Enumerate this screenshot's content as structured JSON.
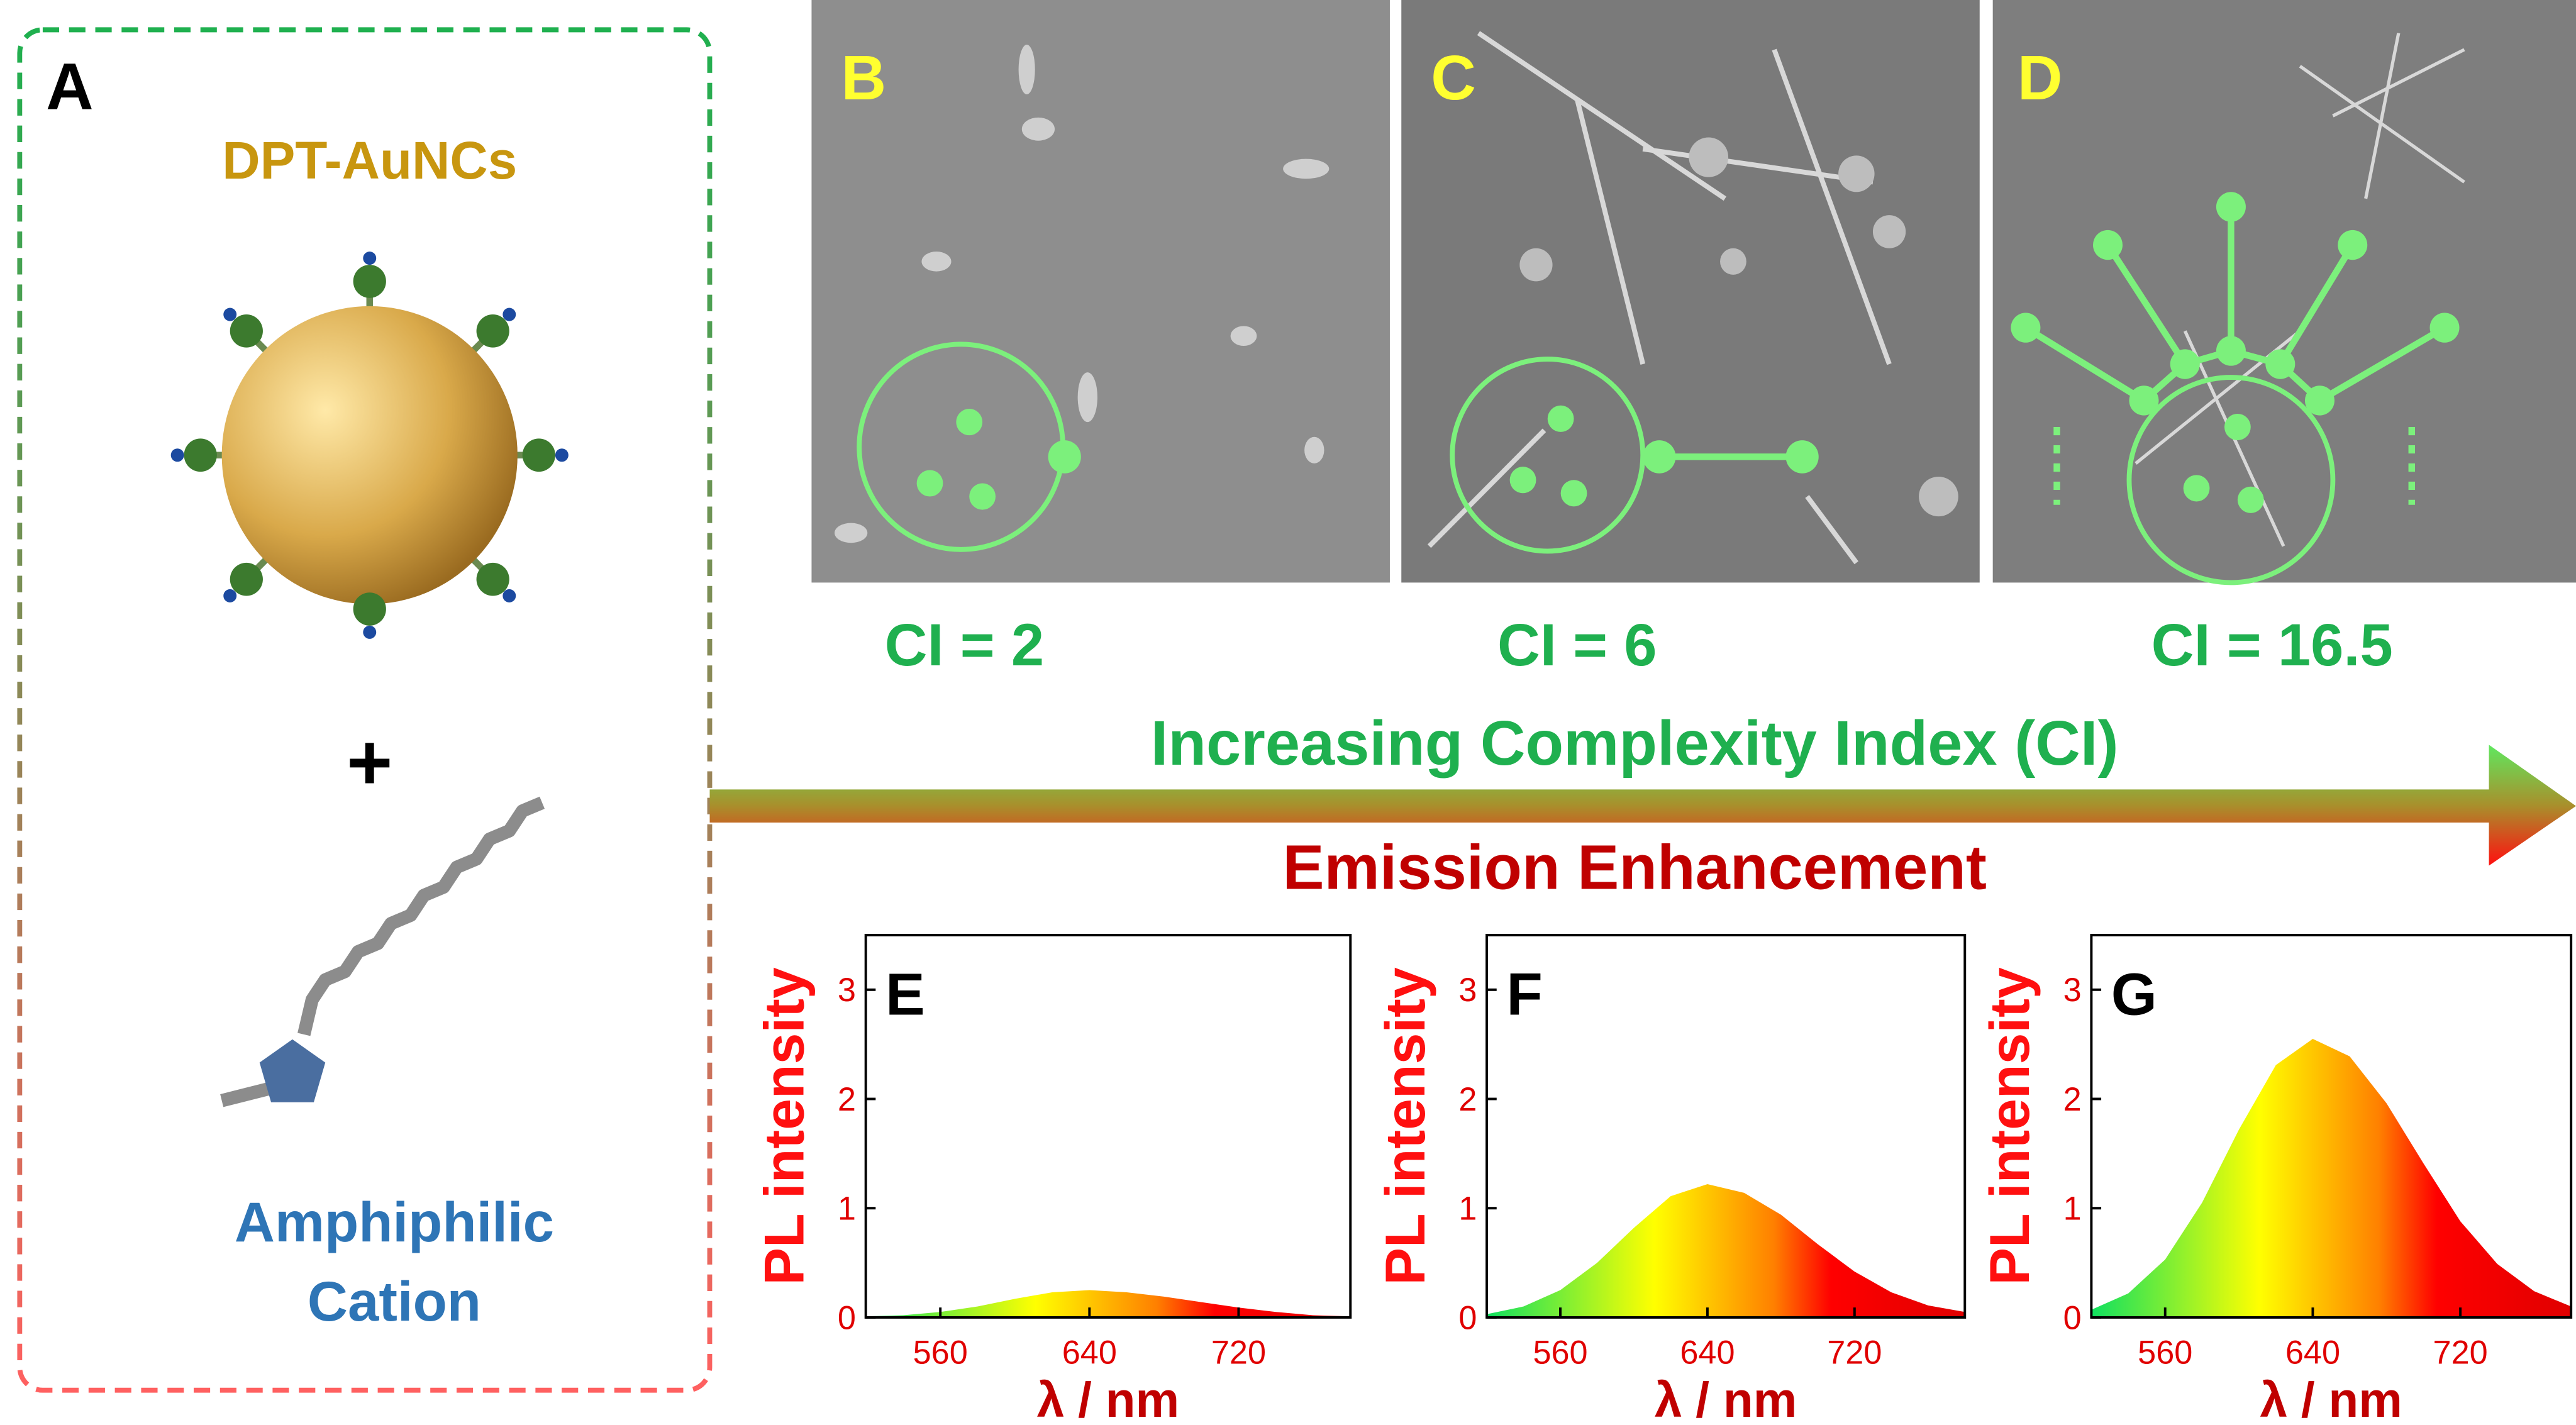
{
  "labels": {
    "panel_a": "A",
    "dpt": "DPT-AuNCs",
    "plus": "+",
    "amphiphilic": "Amphiphilic",
    "cation": "Cation",
    "panel_b": "B",
    "panel_c": "C",
    "panel_d": "D",
    "ci_b": "CI = 2",
    "ci_c": "CI = 6",
    "ci_d": "CI = 16.5",
    "arrow_top": "Increasing Complexity Index (CI)",
    "arrow_bottom": "Emission Enhancement"
  },
  "chart_data": [
    {
      "type": "area",
      "title": "E",
      "xlabel": "λ / nm",
      "ylabel": "PL intensity",
      "x": [
        520,
        540,
        560,
        580,
        600,
        620,
        640,
        660,
        680,
        700,
        720,
        740,
        760,
        780
      ],
      "values": [
        0.01,
        0.02,
        0.05,
        0.1,
        0.17,
        0.23,
        0.25,
        0.23,
        0.19,
        0.14,
        0.09,
        0.05,
        0.02,
        0.01
      ],
      "xlim": [
        520,
        780
      ],
      "ylim": [
        0,
        3.5
      ],
      "xticks": [
        560,
        640,
        720
      ],
      "yticks": [
        0,
        1,
        2,
        3
      ]
    },
    {
      "type": "area",
      "title": "F",
      "xlabel": "λ / nm",
      "ylabel": "PL intensity",
      "x": [
        520,
        540,
        560,
        580,
        600,
        620,
        640,
        660,
        680,
        700,
        720,
        740,
        760,
        780
      ],
      "values": [
        0.03,
        0.1,
        0.25,
        0.5,
        0.82,
        1.11,
        1.22,
        1.14,
        0.94,
        0.67,
        0.42,
        0.23,
        0.11,
        0.05
      ],
      "xlim": [
        520,
        780
      ],
      "ylim": [
        0,
        3.5
      ],
      "xticks": [
        560,
        640,
        720
      ],
      "yticks": [
        0,
        1,
        2,
        3
      ]
    },
    {
      "type": "area",
      "title": "G",
      "xlabel": "λ / nm",
      "ylabel": "PL intensity",
      "x": [
        520,
        540,
        560,
        580,
        600,
        620,
        640,
        660,
        680,
        700,
        720,
        740,
        760,
        780
      ],
      "values": [
        0.07,
        0.22,
        0.53,
        1.05,
        1.72,
        2.31,
        2.55,
        2.39,
        1.96,
        1.41,
        0.88,
        0.49,
        0.24,
        0.1
      ],
      "xlim": [
        520,
        780
      ],
      "ylim": [
        0,
        3.5
      ],
      "xticks": [
        560,
        640,
        720
      ],
      "yticks": [
        0,
        1,
        2,
        3
      ]
    }
  ]
}
